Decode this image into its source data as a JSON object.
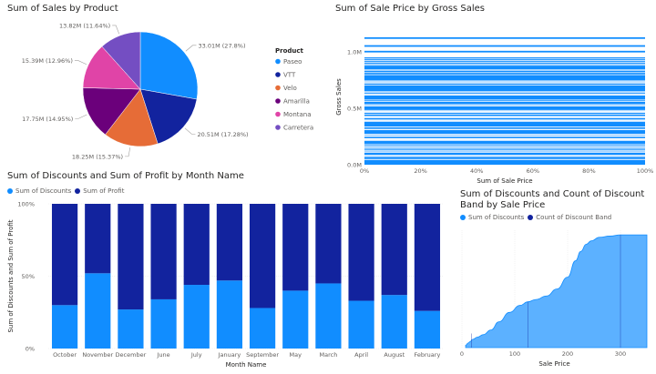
{
  "chart_data": [
    {
      "type": "pie",
      "title": "Sum of Sales by Product",
      "legend_title": "Product",
      "legend_position": "right",
      "categories": [
        "Paseo",
        "VTT",
        "Velo",
        "Amarilla",
        "Montana",
        "Carretera"
      ],
      "values": [
        33.01,
        20.51,
        18.25,
        17.75,
        15.39,
        13.82
      ],
      "data_labels": [
        "33.01M (27.8%)",
        "20.51M (17.28%)",
        "18.25M (15.37%)",
        "17.75M (14.95%)",
        "15.39M (12.96%)",
        "13.82M (11.64%)"
      ],
      "colors": [
        "#118dff",
        "#12239e",
        "#e66c37",
        "#6b007b",
        "#e044a7",
        "#744ec2"
      ]
    },
    {
      "type": "bar",
      "orientation": "horizontal",
      "title": "Sum of Sale Price by Gross Sales",
      "xlabel": "Sum of Sale Price",
      "ylabel": "Gross Sales",
      "x_ticks": [
        "0%",
        "20%",
        "40%",
        "60%",
        "80%",
        "100%"
      ],
      "y_ticks": [
        "0.0M",
        "0.5M",
        "1.0M"
      ],
      "ylim": [
        0,
        1.2
      ],
      "note": "many thin bars, each at 100%",
      "color": "#118dff"
    },
    {
      "type": "bar",
      "stacked_percent": true,
      "title": "Sum of Discounts and Sum of Profit by Month Name",
      "xlabel": "Month Name",
      "ylabel": "Sum of Discounts and Sum of Profit",
      "y_ticks": [
        "0%",
        "50%",
        "100%"
      ],
      "legend_position": "top-left",
      "categories": [
        "October",
        "November",
        "December",
        "June",
        "July",
        "January",
        "September",
        "May",
        "March",
        "April",
        "August",
        "February"
      ],
      "series": [
        {
          "name": "Sum of Discounts",
          "values": [
            30,
            52,
            27,
            34,
            44,
            47,
            28,
            40,
            45,
            33,
            37,
            26
          ],
          "color": "#118dff"
        },
        {
          "name": "Sum of Profit",
          "values": [
            70,
            48,
            73,
            66,
            56,
            53,
            72,
            60,
            55,
            67,
            63,
            74
          ],
          "color": "#12239e"
        }
      ]
    },
    {
      "type": "area",
      "title": "Sum of Discounts and Count of Discount Band by Sale Price",
      "xlabel": "Sale Price",
      "x_ticks": [
        "0",
        "100",
        "200",
        "300"
      ],
      "xlim": [
        0,
        350
      ],
      "legend_position": "top-left",
      "series": [
        {
          "name": "Sum of Discounts",
          "color": "#118dff"
        },
        {
          "name": "Count of Discount Band",
          "color": "#12239e"
        }
      ],
      "x": [
        7,
        12,
        15,
        20,
        30,
        40,
        55,
        70,
        90,
        110,
        125,
        140,
        160,
        180,
        200,
        215,
        225,
        235,
        245,
        260,
        280,
        300,
        320,
        350
      ],
      "values": [
        0.02,
        0.04,
        0.05,
        0.07,
        0.09,
        0.11,
        0.15,
        0.22,
        0.3,
        0.36,
        0.39,
        0.41,
        0.44,
        0.5,
        0.6,
        0.74,
        0.82,
        0.88,
        0.91,
        0.94,
        0.95,
        0.96,
        0.96,
        0.96
      ]
    }
  ]
}
